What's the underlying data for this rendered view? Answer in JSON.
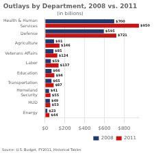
{
  "chart_data": {
    "type": "bar",
    "orientation": "horizontal",
    "title": "Outlays by Department, 2008 vs. 2011",
    "subtitle": "(in billions)",
    "annotations": [
      "Source: U.S. Budget, FY2011, Historical Tables"
    ],
    "categories": [
      "Health & Human\nServices",
      "Defense",
      "Agriculture",
      "Veterans Affairs",
      "Labor",
      "Education",
      "Transportation",
      "Homeland\nSecurity",
      "HUD",
      "Energy"
    ],
    "series": [
      {
        "name": "2008",
        "color": "#1e3a6e",
        "values": [
          700,
          595,
          91,
          85,
          59,
          66,
          65,
          41,
          49,
          23
        ],
        "value_labels": [
          "$700",
          "$595",
          "$91",
          "$85",
          "$59",
          "$66",
          "$65",
          "$41",
          "$49",
          "$23"
        ]
      },
      {
        "name": "2011",
        "color": "#cc1111",
        "values": [
          950,
          721,
          146,
          124,
          137,
          94,
          87,
          55,
          53,
          44
        ],
        "value_labels": [
          "$950",
          "$721",
          "$146",
          "$124",
          "$137",
          "$94",
          "$87",
          "$55",
          "$53",
          "$44"
        ]
      }
    ],
    "xlim": [
      0,
      950
    ],
    "xticks": [
      {
        "value": 0,
        "label": "$0"
      },
      {
        "value": 200,
        "label": "$200"
      },
      {
        "value": 400,
        "label": "$400"
      },
      {
        "value": 600,
        "label": "$600"
      },
      {
        "value": 800,
        "label": "$800"
      }
    ],
    "data_labels": true,
    "grid": true,
    "legend": "lower right"
  }
}
